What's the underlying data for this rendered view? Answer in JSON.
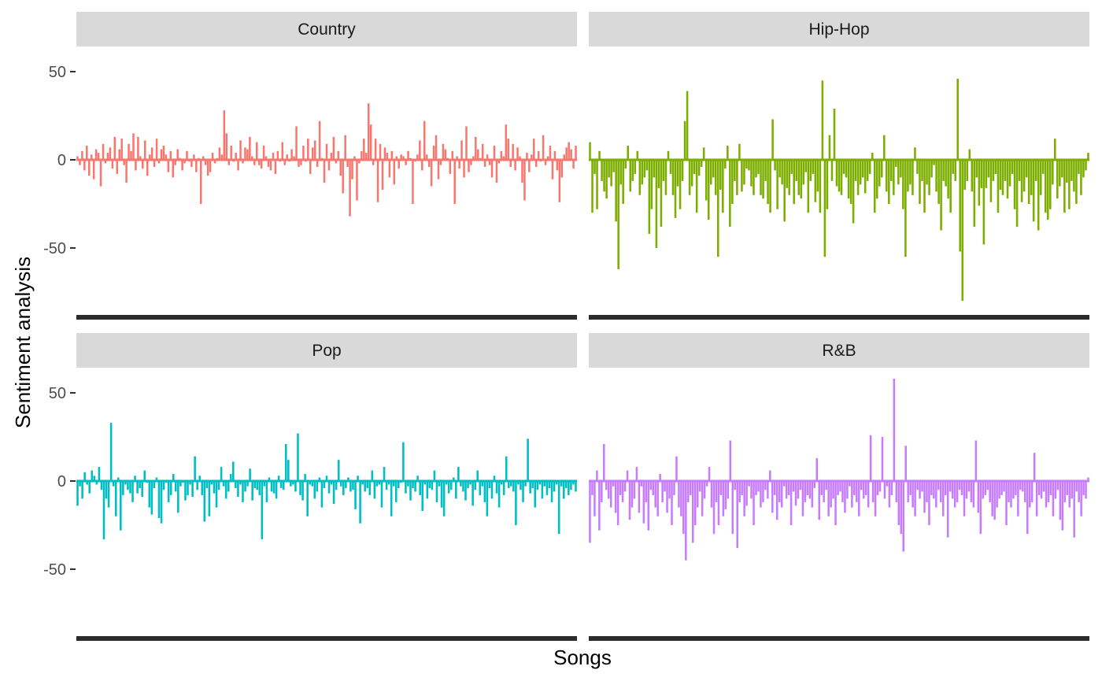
{
  "chart_data": {
    "type": "bar",
    "title": "",
    "xlabel": "Songs",
    "ylabel": "Sentiment analysis",
    "ylim": [
      -90,
      58
    ],
    "yticks": [
      -50,
      0,
      50
    ],
    "grid": false,
    "legend": "none",
    "facets": [
      {
        "name": "Country",
        "color": "#F8766D",
        "values": [
          2,
          -3,
          5,
          -6,
          8,
          -9,
          3,
          -11,
          6,
          4,
          -15,
          9,
          -2,
          4,
          7,
          -5,
          13,
          -8,
          6,
          12,
          -3,
          -13,
          9,
          5,
          15,
          -6,
          13,
          2,
          -5,
          11,
          -9,
          3,
          7,
          -4,
          12,
          -2,
          6,
          8,
          3,
          -7,
          5,
          -10,
          -3,
          6,
          1,
          -6,
          -2,
          5,
          -1,
          -4,
          3,
          -7,
          1,
          -25,
          2,
          -3,
          -9,
          -7,
          4,
          -2,
          1,
          7,
          3,
          28,
          15,
          -3,
          8,
          -1,
          4,
          -6,
          11,
          -2,
          7,
          6,
          13,
          2,
          -3,
          10,
          -3,
          -5,
          8,
          2,
          -4,
          -6,
          4,
          -8,
          5,
          -1,
          10,
          -3,
          3,
          -1,
          6,
          2,
          19,
          -4,
          -3,
          8,
          -1,
          12,
          -8,
          7,
          11,
          -4,
          22,
          1,
          -13,
          9,
          -6,
          4,
          13,
          -2,
          5,
          -9,
          -19,
          14,
          -4,
          -32,
          -11,
          2,
          -23,
          -2,
          5,
          12,
          4,
          32,
          20,
          -3,
          12,
          -24,
          9,
          -17,
          7,
          4,
          -10,
          5,
          -14,
          2,
          -5,
          3,
          2,
          -3,
          5,
          1,
          -25,
          -1,
          3,
          11,
          -6,
          22,
          3,
          -4,
          -15,
          8,
          14,
          -11,
          -3,
          9,
          6,
          1,
          -8,
          5,
          -25,
          2,
          -5,
          11,
          -10,
          19,
          -7,
          -3,
          2,
          13,
          6,
          1,
          9,
          -4,
          3,
          -3,
          -10,
          8,
          -13,
          -2,
          5,
          2,
          20,
          12,
          -4,
          9,
          -6,
          7,
          2,
          -13,
          -23,
          4,
          -7,
          3,
          12,
          -4,
          5,
          -1,
          14,
          -3,
          2,
          8,
          -11,
          5,
          -6,
          -24,
          -10,
          3,
          7,
          10,
          6,
          -5,
          8
        ],
        "cap_ticks": 300
      },
      {
        "name": "Hip-Hop",
        "color": "#7CAE00",
        "values": [
          10,
          -30,
          -8,
          -28,
          5,
          -12,
          -18,
          -22,
          -10,
          -15,
          -7,
          -35,
          -62,
          -14,
          -25,
          -5,
          8,
          -18,
          -12,
          -8,
          5,
          -20,
          -14,
          -10,
          -6,
          -42,
          -28,
          -10,
          -50,
          -16,
          -38,
          -12,
          -20,
          5,
          -8,
          -20,
          -33,
          -15,
          -28,
          -12,
          22,
          39,
          -20,
          -15,
          -8,
          -30,
          -9,
          -4,
          7,
          -23,
          -34,
          -14,
          -10,
          -20,
          -55,
          -17,
          -30,
          -5,
          8,
          -38,
          -25,
          -12,
          -20,
          9,
          -18,
          -14,
          -5,
          -6,
          -15,
          -20,
          -10,
          -8,
          -20,
          -22,
          -12,
          -25,
          -30,
          23,
          -6,
          -28,
          -10,
          -14,
          -35,
          -16,
          -20,
          -8,
          -25,
          -12,
          -20,
          -22,
          -14,
          -7,
          -30,
          -12,
          -8,
          -24,
          -18,
          -30,
          45,
          -55,
          -28,
          14,
          -12,
          29,
          -15,
          -18,
          -20,
          -8,
          -10,
          -22,
          -25,
          -36,
          -12,
          -20,
          -14,
          -10,
          -19,
          -12,
          -8,
          4,
          -30,
          -22,
          -15,
          -10,
          14,
          -18,
          -25,
          -12,
          -20,
          -4,
          -14,
          -10,
          -28,
          -55,
          -18,
          -14,
          -20,
          7,
          -8,
          -25,
          -12,
          -30,
          -14,
          -20,
          -10,
          -3,
          -18,
          -25,
          -40,
          -12,
          -15,
          -22,
          -30,
          -8,
          -12,
          46,
          -52,
          -80,
          -17,
          -12,
          6,
          -18,
          -38,
          -10,
          -26,
          -16,
          -48,
          -16,
          -10,
          -24,
          -12,
          -8,
          -30,
          -17,
          -20,
          -12,
          -22,
          -15,
          -8,
          -28,
          -38,
          -12,
          -24,
          -18,
          -10,
          -25,
          -20,
          -35,
          -12,
          -40,
          -20,
          -8,
          -30,
          -34,
          -28,
          -14,
          12,
          -22,
          -15,
          -10,
          -30,
          -13,
          -28,
          -12,
          -18,
          -25,
          -8,
          -20,
          -10,
          -6,
          4
        ],
        "cap_ticks": 300
      },
      {
        "name": "Pop",
        "color": "#00BFC4",
        "values": [
          -14,
          -3,
          -10,
          5,
          -2,
          -7,
          6,
          3,
          -2,
          8,
          -5,
          -33,
          -10,
          -15,
          33,
          -3,
          -20,
          2,
          -28,
          -8,
          -2,
          -5,
          -7,
          -12,
          3,
          -7,
          -4,
          -9,
          6,
          -1,
          -15,
          -19,
          -4,
          2,
          -21,
          -24,
          -5,
          -1,
          -12,
          -8,
          4,
          -6,
          -18,
          -3,
          -1,
          -11,
          -8,
          -2,
          -9,
          14,
          -5,
          3,
          -8,
          -23,
          -4,
          -20,
          -2,
          -7,
          -15,
          -5,
          8,
          -3,
          -10,
          -6,
          4,
          11,
          -4,
          -9,
          -2,
          -12,
          -6,
          -3,
          7,
          -11,
          -4,
          -5,
          -8,
          -33,
          -3,
          -12,
          2,
          -6,
          -7,
          -10,
          3,
          -4,
          -5,
          21,
          12,
          -3,
          -2,
          -6,
          27,
          -8,
          -11,
          4,
          -20,
          -2,
          -3,
          -10,
          -6,
          2,
          -15,
          -4,
          3,
          -7,
          -2,
          -13,
          -5,
          12,
          -3,
          -8,
          -4,
          2,
          -6,
          -5,
          -16,
          3,
          -24,
          -2,
          -6,
          -4,
          -8,
          6,
          -10,
          -3,
          -2,
          -15,
          8,
          -5,
          -2,
          -20,
          -3,
          -12,
          -4,
          -1,
          22,
          -7,
          -3,
          -11,
          -4,
          -6,
          3,
          -8,
          -17,
          -2,
          -10,
          -4,
          -5,
          6,
          -12,
          -3,
          -15,
          -20,
          -2,
          -7,
          -5,
          2,
          -10,
          8,
          -3,
          -6,
          -11,
          -4,
          -2,
          -14,
          -5,
          6,
          -8,
          -3,
          -12,
          -20,
          -4,
          -10,
          3,
          -7,
          -15,
          -2,
          -8,
          14,
          -4,
          -3,
          -6,
          -25,
          -2,
          -5,
          -12,
          -3,
          24,
          -7,
          -4,
          -15,
          -5,
          -2,
          -10,
          -3,
          -8,
          -4,
          -12,
          -6,
          -2,
          -30,
          -3,
          -10,
          -4,
          -8,
          -5,
          -2,
          -6
        ],
        "cap_ticks": 300
      },
      {
        "name": "R&B",
        "color": "#C77CFF",
        "values": [
          -35,
          -8,
          -20,
          6,
          -28,
          -12,
          21,
          -5,
          -10,
          -15,
          -3,
          -18,
          -25,
          -8,
          -12,
          -6,
          6,
          -22,
          -15,
          -10,
          8,
          -18,
          -3,
          -24,
          -12,
          -28,
          -5,
          -8,
          -15,
          -20,
          4,
          -12,
          -6,
          -18,
          -10,
          -25,
          -8,
          14,
          -15,
          -20,
          -30,
          -45,
          -12,
          -8,
          -35,
          -25,
          -15,
          -6,
          -20,
          -10,
          -3,
          8,
          -15,
          -30,
          -12,
          -25,
          -8,
          -20,
          -16,
          -10,
          23,
          -30,
          -5,
          -38,
          -12,
          -8,
          -20,
          -14,
          -3,
          -10,
          -25,
          -8,
          -6,
          -15,
          -12,
          -5,
          -10,
          6,
          -18,
          -8,
          -22,
          -12,
          -15,
          -3,
          -10,
          -8,
          -25,
          -6,
          -14,
          -10,
          -5,
          -20,
          -12,
          -8,
          -10,
          -15,
          -4,
          13,
          -22,
          -8,
          -12,
          -5,
          -20,
          -15,
          -10,
          -25,
          -8,
          -6,
          -12,
          -18,
          -10,
          -3,
          -15,
          -8,
          -12,
          -20,
          -5,
          -10,
          -8,
          -15,
          26,
          -12,
          -20,
          -8,
          -6,
          25,
          -10,
          -3,
          -15,
          -8,
          58,
          -12,
          -25,
          -30,
          -40,
          20,
          -12,
          -8,
          -15,
          -20,
          -5,
          -10,
          -6,
          -18,
          -12,
          -25,
          -8,
          -10,
          -15,
          -5,
          -12,
          -20,
          -8,
          -32,
          -6,
          -10,
          -15,
          -12,
          -5,
          -8,
          -20,
          -10,
          -6,
          -12,
          -15,
          23,
          -18,
          -30,
          -10,
          -8,
          -5,
          -12,
          -20,
          -22,
          -15,
          -10,
          -8,
          -6,
          -25,
          -12,
          -15,
          -10,
          -8,
          -20,
          -5,
          -6,
          -12,
          -30,
          -15,
          -12,
          16,
          -20,
          -8,
          -10,
          -6,
          -15,
          -12,
          -8,
          -20,
          -10,
          -5,
          -22,
          -28,
          -12,
          -8,
          -15,
          -10,
          -32,
          -6,
          -12,
          -20,
          -8,
          -10,
          2
        ],
        "cap_ticks": 300
      }
    ]
  }
}
